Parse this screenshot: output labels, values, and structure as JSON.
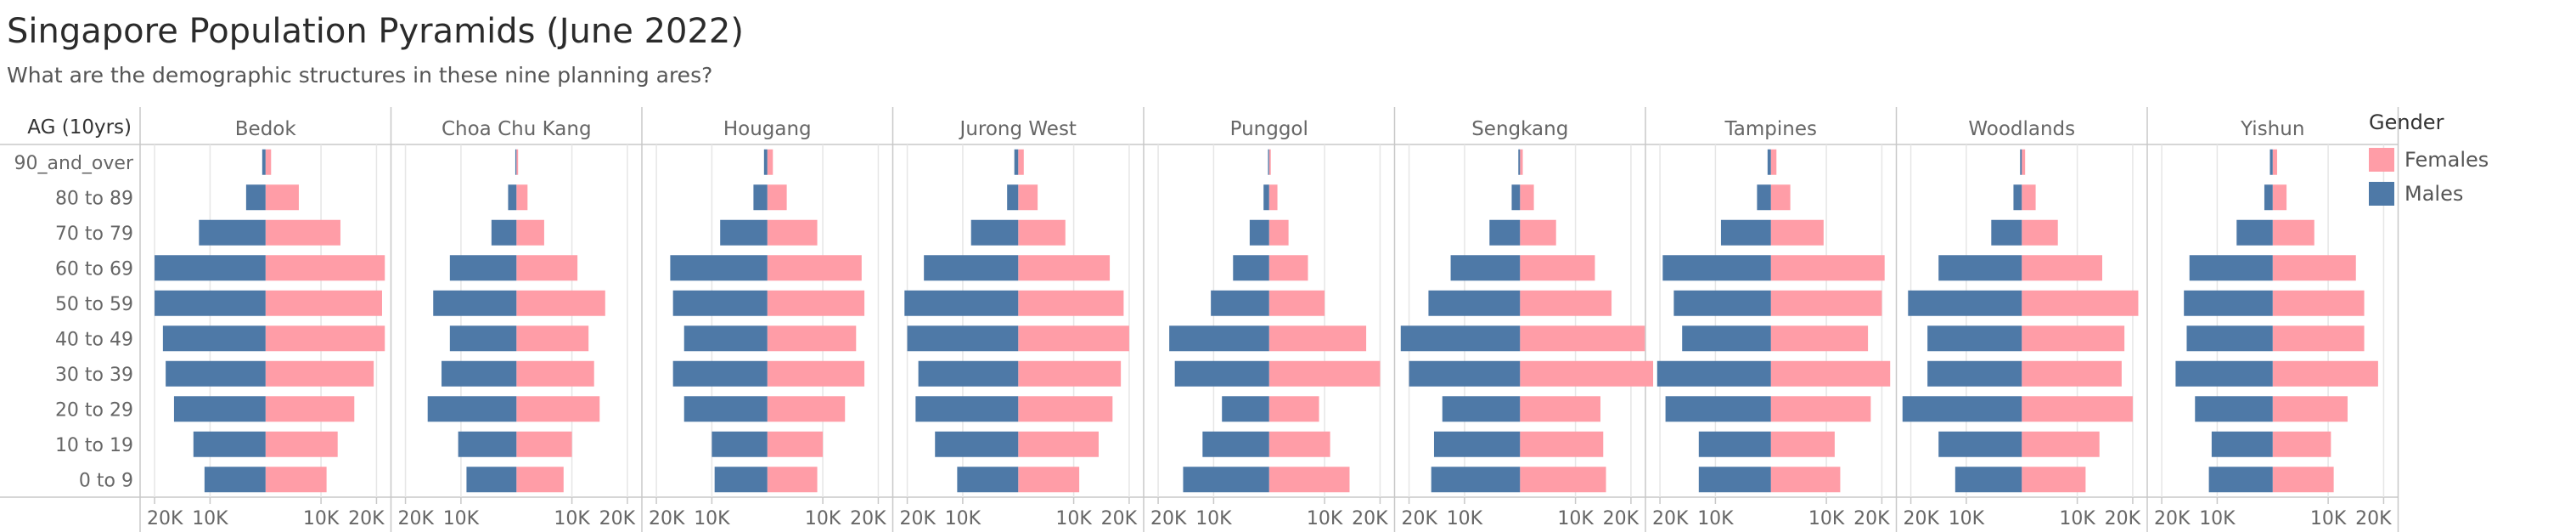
{
  "title": "Singapore Population Pyramids (June 2022)",
  "subtitle": "What are the demographic structures in these nine planning ares?",
  "colors": {
    "females": "#ff9da7",
    "males": "#4e79a7",
    "grid": "#e6e6e6",
    "divider": "#c8c8c8"
  },
  "legend": {
    "title": "Gender",
    "items": [
      {
        "label": "Females",
        "color": "#ff9da7"
      },
      {
        "label": "Males",
        "color": "#4e79a7"
      }
    ]
  },
  "chart_data": {
    "type": "bar",
    "orientation": "horizontal-diverging",
    "row_header": "AG (10yrs)",
    "categories": [
      "90_and_over",
      "80 to 89",
      "70 to 79",
      "60 to 69",
      "50 to 59",
      "40 to 49",
      "30 to 39",
      "20 to 29",
      "10 to 19",
      "0 to 9"
    ],
    "x_ticks": [
      "20K",
      "10K",
      "10K",
      "20K"
    ],
    "xlim": [
      -22000,
      22000
    ],
    "panels": [
      {
        "name": "Bedok",
        "series": [
          {
            "name": "Females",
            "values": [
              1000,
              6000,
              13500,
              21500,
              21000,
              21500,
              19500,
              16000,
              13000,
              11000
            ]
          },
          {
            "name": "Males",
            "values": [
              600,
              3500,
              12000,
              20000,
              20000,
              18500,
              18000,
              16500,
              13000,
              11000
            ]
          }
        ]
      },
      {
        "name": "Choa Chu Kang",
        "series": [
          {
            "name": "Females",
            "values": [
              300,
              2000,
              5000,
              11000,
              16000,
              13000,
              14000,
              15000,
              10000,
              8500
            ]
          },
          {
            "name": "Males",
            "values": [
              200,
              1500,
              4500,
              12000,
              15000,
              12000,
              13500,
              16000,
              10500,
              9000
            ]
          }
        ]
      },
      {
        "name": "Hougang",
        "series": [
          {
            "name": "Females",
            "values": [
              1000,
              3500,
              9000,
              17000,
              17500,
              16000,
              17500,
              14000,
              10000,
              9000
            ]
          },
          {
            "name": "Males",
            "values": [
              600,
              2500,
              8500,
              17500,
              17000,
              15000,
              17000,
              15000,
              10000,
              9500
            ]
          }
        ]
      },
      {
        "name": "Jurong West",
        "series": [
          {
            "name": "Females",
            "values": [
              1000,
              3500,
              8500,
              16500,
              19000,
              20000,
              18500,
              17000,
              14500,
              11000
            ]
          },
          {
            "name": "Males",
            "values": [
              700,
              2000,
              8500,
              17000,
              20500,
              20000,
              18000,
              18500,
              15000,
              11000
            ]
          }
        ]
      },
      {
        "name": "Punggol",
        "series": [
          {
            "name": "Females",
            "values": [
              300,
              1500,
              3500,
              7000,
              10000,
              17500,
              20000,
              9000,
              11000,
              14500
            ]
          },
          {
            "name": "Males",
            "values": [
              200,
              1000,
              3500,
              6500,
              10500,
              18000,
              17000,
              8500,
              12000,
              15500
            ]
          }
        ]
      },
      {
        "name": "Sengkang",
        "series": [
          {
            "name": "Females",
            "values": [
              500,
              2500,
              6500,
              13500,
              16500,
              22500,
              24000,
              14500,
              15000,
              15500
            ]
          },
          {
            "name": "Males",
            "values": [
              300,
              1500,
              5500,
              12500,
              16500,
              21500,
              20000,
              14000,
              15500,
              16000
            ]
          }
        ]
      },
      {
        "name": "Tampines",
        "series": [
          {
            "name": "Females",
            "values": [
              1000,
              3500,
              9500,
              20500,
              20000,
              17500,
              21500,
              18000,
              11500,
              12500
            ]
          },
          {
            "name": "Males",
            "values": [
              600,
              2500,
              9000,
              19500,
              17500,
              16000,
              20500,
              19000,
              13000,
              13000
            ]
          }
        ]
      },
      {
        "name": "Woodlands",
        "series": [
          {
            "name": "Females",
            "values": [
              600,
              2500,
              6500,
              14500,
              21000,
              18500,
              18000,
              20000,
              14000,
              11500
            ]
          },
          {
            "name": "Males",
            "values": [
              300,
              1500,
              5500,
              15000,
              20500,
              17000,
              17000,
              21500,
              15000,
              12000
            ]
          }
        ]
      },
      {
        "name": "Yishun",
        "series": [
          {
            "name": "Females",
            "values": [
              800,
              2500,
              7500,
              15000,
              16500,
              16500,
              19000,
              13500,
              10500,
              11000
            ]
          },
          {
            "name": "Males",
            "values": [
              500,
              1500,
              6500,
              15000,
              16000,
              15500,
              17500,
              14000,
              11000,
              11500
            ]
          }
        ]
      }
    ]
  }
}
